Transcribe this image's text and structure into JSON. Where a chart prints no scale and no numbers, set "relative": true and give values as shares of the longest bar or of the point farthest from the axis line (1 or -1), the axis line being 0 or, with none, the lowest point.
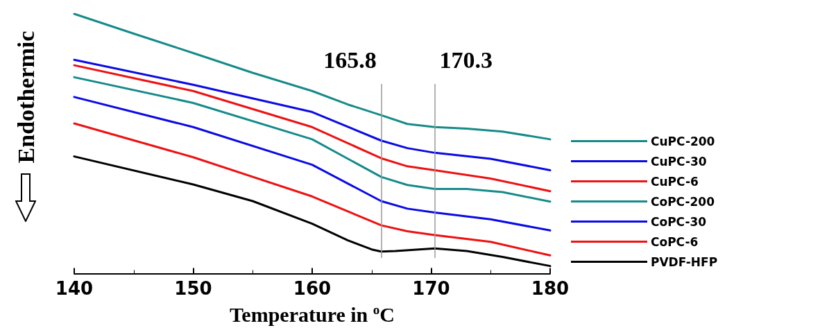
{
  "chart_data": {
    "type": "line",
    "relative": true,
    "xlabel": "Temperature in $^{o}$C",
    "ylabel": "Endothermic",
    "xlim": [
      140,
      180
    ],
    "xticks": [
      140,
      150,
      160,
      170,
      180
    ],
    "grid": false,
    "legend": "right",
    "marker": "none",
    "line_style": "solid",
    "ref_lines": [
      {
        "axis": "x",
        "value": 165.8,
        "label": "165.8",
        "color": "#999999"
      },
      {
        "axis": "x",
        "value": 170.3,
        "label": "170.3",
        "color": "#999999"
      }
    ],
    "series": [
      {
        "name": "CuPC-200",
        "color": "#168a8a",
        "x": [
          140,
          145,
          150,
          155,
          160,
          163,
          165.8,
          168,
          170.3,
          173,
          176,
          180
        ],
        "values": [
          1.0,
          0.924,
          0.849,
          0.773,
          0.703,
          0.651,
          0.61,
          0.576,
          0.564,
          0.558,
          0.547,
          0.517
        ]
      },
      {
        "name": "CuPC-30",
        "color": "#0a0ae6",
        "x": [
          140,
          150,
          160,
          165.8,
          168,
          170.3,
          175,
          180
        ],
        "values": [
          0.823,
          0.727,
          0.622,
          0.512,
          0.483,
          0.465,
          0.442,
          0.398
        ]
      },
      {
        "name": "CuPC-6",
        "color": "#ee1111",
        "x": [
          140,
          150,
          160,
          165.8,
          168,
          170.3,
          175,
          180
        ],
        "values": [
          0.802,
          0.703,
          0.564,
          0.444,
          0.413,
          0.398,
          0.366,
          0.317
        ]
      },
      {
        "name": "CoPC-200",
        "color": "#168a8a",
        "x": [
          140,
          150,
          160,
          165.8,
          168,
          170.3,
          173,
          176,
          180
        ],
        "values": [
          0.756,
          0.657,
          0.517,
          0.372,
          0.341,
          0.326,
          0.326,
          0.314,
          0.277
        ]
      },
      {
        "name": "CoPC-30",
        "color": "#0a0ae6",
        "x": [
          140,
          150,
          160,
          165.8,
          168,
          170.3,
          175,
          180
        ],
        "values": [
          0.68,
          0.564,
          0.419,
          0.279,
          0.25,
          0.235,
          0.209,
          0.166
        ]
      },
      {
        "name": "CoPC-6",
        "color": "#ee1111",
        "x": [
          140,
          150,
          160,
          165.8,
          168,
          170.3,
          175,
          180
        ],
        "values": [
          0.578,
          0.448,
          0.297,
          0.186,
          0.163,
          0.148,
          0.122,
          0.07
        ]
      },
      {
        "name": "PVDF-HFP",
        "color": "#000000",
        "x": [
          140,
          150,
          155,
          160,
          163,
          165,
          165.8,
          167,
          170.3,
          173,
          176,
          180
        ],
        "values": [
          0.451,
          0.343,
          0.279,
          0.192,
          0.128,
          0.093,
          0.085,
          0.087,
          0.097,
          0.087,
          0.064,
          0.029
        ]
      }
    ]
  }
}
